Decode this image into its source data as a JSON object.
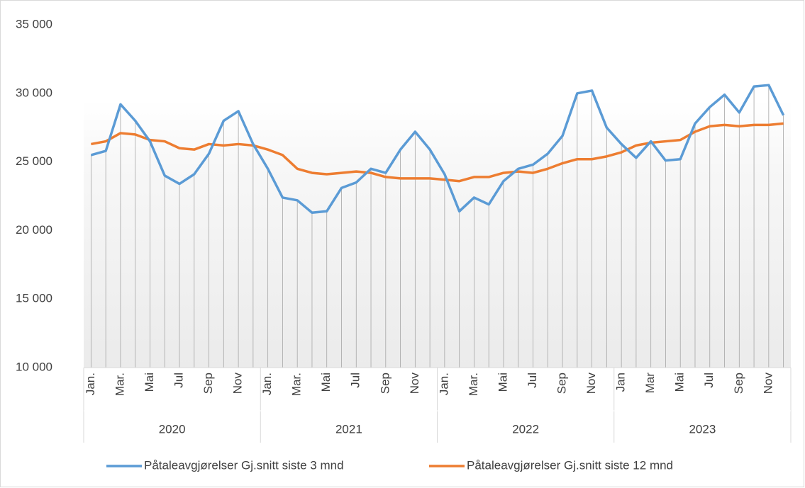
{
  "chart_data": {
    "type": "line",
    "categories": [
      "Jan.",
      null,
      "Mar.",
      null,
      "Mai",
      null,
      "Jul",
      null,
      "Sep",
      null,
      "Nov",
      null,
      "Jan.",
      null,
      "Mar.",
      null,
      "Mai",
      null,
      "Jul",
      null,
      "Sep",
      null,
      "Nov",
      null,
      "Jan.",
      null,
      "Mar.",
      null,
      "Mai",
      null,
      "Jul",
      null,
      "Sep",
      null,
      "Nov",
      null,
      "Jan",
      null,
      "Mar",
      null,
      "Mai",
      null,
      "Jul",
      null,
      "Sep",
      null,
      "Nov",
      null
    ],
    "category_groups": [
      "2020",
      "2021",
      "2022",
      "2023"
    ],
    "series": [
      {
        "name": "Påtaleavgjørelser Gj.snitt siste 3 mnd",
        "color": "#5b9bd5",
        "values": [
          25500,
          25800,
          29200,
          28000,
          26500,
          24000,
          23400,
          24100,
          25600,
          28000,
          28700,
          26300,
          24500,
          22400,
          22200,
          21300,
          21400,
          23100,
          23500,
          24500,
          24200,
          25900,
          27200,
          25900,
          24100,
          21400,
          22400,
          21900,
          23600,
          24500,
          24800,
          25600,
          26900,
          30000,
          30200,
          27500,
          26300,
          25300,
          26500,
          25100,
          25200,
          27800,
          29000,
          29900,
          28600,
          30500,
          30600,
          28400
        ]
      },
      {
        "name": "Påtaleavgjørelser Gj.snitt siste 12 mnd",
        "color": "#ed7d31",
        "values": [
          26300,
          26500,
          27100,
          27000,
          26600,
          26500,
          26000,
          25900,
          26300,
          26200,
          26300,
          26200,
          25900,
          25500,
          24500,
          24200,
          24100,
          24200,
          24300,
          24200,
          23900,
          23800,
          23800,
          23800,
          23700,
          23600,
          23900,
          23900,
          24200,
          24300,
          24200,
          24500,
          24900,
          25200,
          25200,
          25400,
          25700,
          26200,
          26400,
          26500,
          26600,
          27200,
          27600,
          27700,
          27600,
          27700,
          27700,
          27800
        ]
      }
    ],
    "ylim": [
      10000,
      35000
    ],
    "yticks": [
      {
        "value": 10000,
        "label": "10 000"
      },
      {
        "value": 15000,
        "label": "15 000"
      },
      {
        "value": 20000,
        "label": "20 000"
      },
      {
        "value": 25000,
        "label": "25 000"
      },
      {
        "value": 30000,
        "label": "30 000"
      },
      {
        "value": 35000,
        "label": "35 000"
      }
    ],
    "drop_lines": true,
    "legend": "bottom"
  }
}
